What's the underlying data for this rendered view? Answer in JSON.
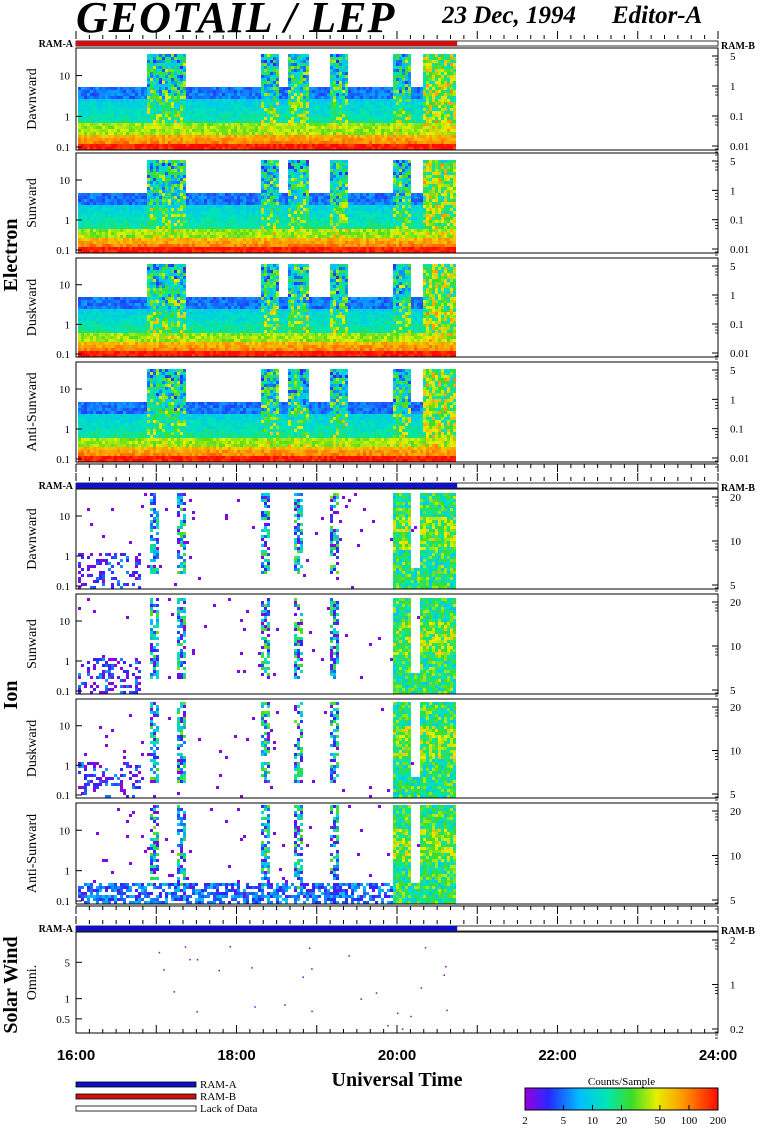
{
  "header": {
    "title": "GEOTAIL / LEP",
    "date": "23 Dec, 1994",
    "editor": "Editor-A"
  },
  "chart_data": {
    "type": "heatmap",
    "xlabel": "Universal Time",
    "x_ticks": [
      "16:00",
      "18:00",
      "20:00",
      "22:00",
      "24:00"
    ],
    "xlim_hours": [
      16,
      24
    ],
    "data_end_hour": 20.75,
    "groups": [
      {
        "name": "Electron",
        "ram_labels": [
          "RAM-A",
          "RAM-B"
        ],
        "ram_bar": "RAM-B",
        "left_ticks": [
          "10",
          "1",
          "0.1"
        ],
        "right_ticks": [
          "5",
          "1",
          "0.1",
          "0.01"
        ],
        "panels": [
          "Dawnward",
          "Sunward",
          "Duskward",
          "Anti-Sunward"
        ]
      },
      {
        "name": "Ion",
        "ram_labels": [
          "RAM-A",
          "RAM-B"
        ],
        "ram_bar": "RAM-A",
        "left_ticks": [
          "10",
          "1",
          "0.1"
        ],
        "right_ticks": [
          "20",
          "10",
          "5"
        ],
        "panels": [
          "Dawnward",
          "Sunward",
          "Duskward",
          "Anti-Sunward"
        ]
      },
      {
        "name": "Solar Wind",
        "ram_labels": [
          "RAM-A",
          "RAM-B"
        ],
        "ram_bar": "RAM-A",
        "left_ticks": [
          "5",
          "1",
          "0.5"
        ],
        "right_ticks": [
          "2",
          "1",
          "0.2"
        ],
        "panels": [
          "Omni."
        ]
      }
    ],
    "legend": {
      "items": [
        {
          "label": "RAM-A",
          "color": "#1010c8"
        },
        {
          "label": "RAM-B",
          "color": "#d01010"
        },
        {
          "label": "Lack of Data",
          "color": "#ffffff"
        }
      ]
    },
    "colorbar": {
      "title": "Counts/Sample",
      "ticks": [
        "2",
        "5",
        "10",
        "20",
        "50",
        "100",
        "200"
      ],
      "scale": "log",
      "range": [
        2,
        200
      ]
    }
  }
}
